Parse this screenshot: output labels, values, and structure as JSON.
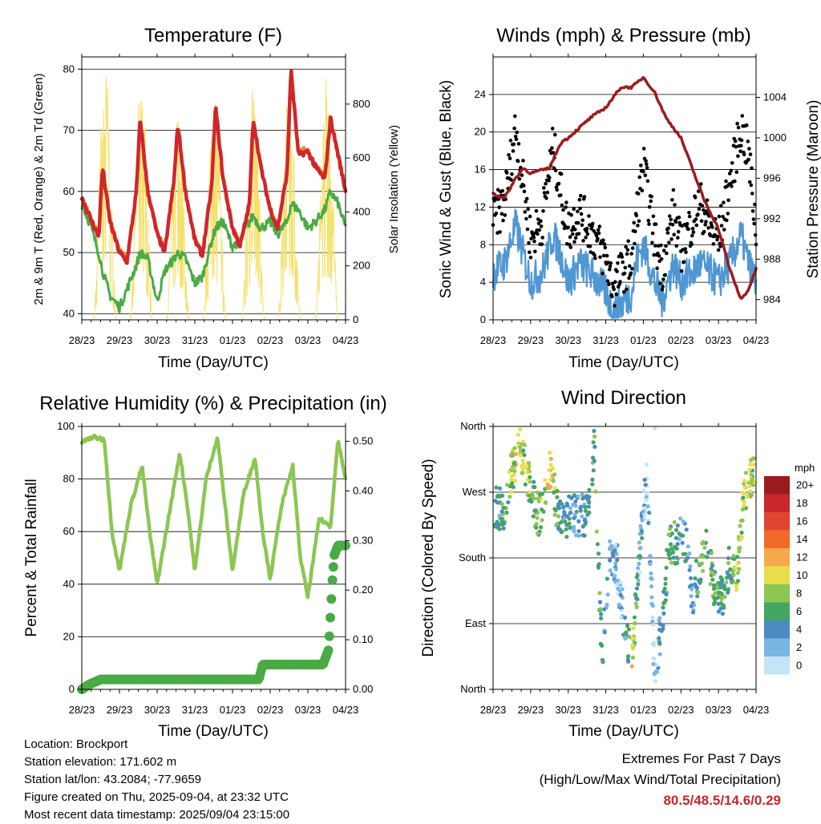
{
  "panels": {
    "temperature": {
      "title": "Temperature (F)",
      "ylabel": "2m & 9m T (Red, Orange) & 2m Td (Green)",
      "y2label": "Solar Insolation (Yellow)",
      "xlabel": "Time (Day/UTC)"
    },
    "winds": {
      "title": "Winds (mph) & Pressure (mb)",
      "ylabel": "Sonic Wind & Gust (Blue, Black)",
      "y2label": "Station Pressure (Maroon)",
      "xlabel": "Time (Day/UTC)"
    },
    "humidity": {
      "title": "Relative Humidity (%) & Precipitation (in)",
      "ylabel": "Percent & Total Rainfall",
      "xlabel": "Time (Day/UTC)"
    },
    "direction": {
      "title": "Wind Direction",
      "ylabel": "Direction (Colored By Speed)",
      "xlabel": "Time (Day/UTC)",
      "colorbar_unit": "mph",
      "colorbar_labels": [
        "20+",
        "18",
        "16",
        "14",
        "12",
        "10",
        "8",
        "6",
        "4",
        "2",
        "0"
      ],
      "colorbar_colors": [
        "#9b1c1f",
        "#c8262b",
        "#e0452f",
        "#f06a2c",
        "#f7a84a",
        "#e8de4c",
        "#8cc653",
        "#45a562",
        "#4a8bc4",
        "#7bb5e2",
        "#c5e4f6"
      ]
    }
  },
  "x_ticks": [
    "28/23",
    "29/23",
    "30/23",
    "31/23",
    "01/23",
    "02/23",
    "03/23",
    "04/23"
  ],
  "info": {
    "location": "Location: Brockport",
    "elevation": "Station elevation: 171.602 m",
    "latlon": "Station lat/lon: 43.2084; -77.9659",
    "created": "Figure created on Thu, 2025-09-04, at 23:32 UTC",
    "recent": "Most recent data timestamp: 2025/09/04 23:15:00"
  },
  "extremes": {
    "line1": "Extremes For Past 7 Days",
    "line2": "(High/Low/Max Wind/Total Precipitation)",
    "values": "80.5/48.5/14.6/0.29"
  },
  "chart_data": [
    {
      "type": "line",
      "title": "Temperature (F)",
      "xlabel": "Time (Day/UTC)",
      "ylabel": "2m & 9m T (Red, Orange) & 2m Td (Green)",
      "y2label": "Solar Insolation (Yellow)",
      "x": [
        0,
        0.2,
        0.45,
        0.55,
        0.75,
        1.0,
        1.2,
        1.45,
        1.55,
        1.75,
        2.0,
        2.2,
        2.45,
        2.55,
        2.75,
        3.0,
        3.2,
        3.45,
        3.55,
        3.75,
        4.0,
        4.2,
        4.45,
        4.55,
        4.75,
        5.0,
        5.2,
        5.45,
        5.55,
        5.75,
        6.0,
        6.2,
        6.45,
        6.6,
        6.8,
        7.0
      ],
      "ylim": [
        39,
        82
      ],
      "y2lim": [
        0,
        975
      ],
      "series": [
        {
          "name": "2m T",
          "color": "#d0262a",
          "axis": "left",
          "values": [
            59,
            56,
            52.5,
            64,
            55,
            50,
            48.5,
            60,
            72,
            60,
            53,
            50,
            62,
            71,
            60,
            52,
            49.5,
            61,
            74,
            62,
            54,
            51,
            58,
            72,
            64,
            57,
            54,
            63,
            80,
            66,
            66.5,
            64,
            62,
            72,
            66,
            60
          ]
        },
        {
          "name": "9m T",
          "color": "#f08a2c",
          "axis": "left",
          "values": [
            59,
            56.5,
            53,
            63.5,
            55.5,
            50.5,
            49,
            59.5,
            71.5,
            60.5,
            53.5,
            50.5,
            61.5,
            70.5,
            60.5,
            52.5,
            50,
            60.5,
            73.5,
            62.5,
            54.5,
            51.5,
            57.5,
            71.5,
            64.5,
            57.5,
            54.5,
            62.5,
            79.5,
            66.5,
            67,
            64.5,
            62.5,
            71.5,
            66.5,
            60.5
          ]
        },
        {
          "name": "2m Td",
          "color": "#4aaa45",
          "axis": "left",
          "values": [
            58,
            55,
            50,
            47,
            43,
            41,
            44,
            48,
            50,
            49,
            42,
            47,
            49,
            50,
            49,
            45,
            46,
            52,
            54,
            55,
            51,
            52,
            55,
            56,
            54,
            55,
            53,
            55,
            58,
            57,
            54,
            55,
            57,
            60,
            58,
            54
          ]
        }
      ],
      "insolation_days": [
        {
          "center": 0.62,
          "peak": 950
        },
        {
          "center": 1.58,
          "peak": 920
        },
        {
          "center": 2.55,
          "peak": 780
        },
        {
          "center": 3.52,
          "peak": 900
        },
        {
          "center": 4.55,
          "peak": 870
        },
        {
          "center": 5.5,
          "peak": 880
        },
        {
          "center": 6.5,
          "peak": 950
        }
      ]
    },
    {
      "type": "scatter",
      "title": "Winds (mph) & Pressure (mb)",
      "xlabel": "Time (Day/UTC)",
      "ylabel": "Sonic Wind & Gust (Blue, Black)",
      "y2label": "Station Pressure (Maroon)",
      "ylim": [
        0,
        28
      ],
      "y2lim": [
        982,
        1008
      ],
      "series": [
        {
          "name": "Sonic Wind",
          "color": "#4f97d3",
          "x": [
            0,
            0.3,
            0.6,
            0.8,
            1.0,
            1.3,
            1.6,
            1.8,
            2.0,
            2.3,
            2.6,
            3.0,
            3.2,
            3.5,
            3.7,
            3.8,
            4.0,
            4.3,
            4.5,
            4.8,
            5.0,
            5.3,
            5.5,
            5.8,
            6.0,
            6.3,
            6.6,
            6.8,
            7.0
          ],
          "values": [
            5,
            6,
            10,
            7,
            4,
            5,
            9,
            7,
            4,
            6,
            5,
            3,
            1,
            2,
            3,
            6,
            8,
            4,
            2,
            6,
            4,
            5,
            6,
            5,
            4,
            6,
            9,
            6,
            4
          ]
        },
        {
          "name": "Gust",
          "color": "#000000",
          "x": [
            0,
            0.3,
            0.6,
            0.8,
            1.0,
            1.3,
            1.6,
            1.8,
            2.0,
            2.3,
            2.6,
            3.0,
            3.2,
            3.5,
            3.7,
            3.8,
            4.0,
            4.3,
            4.5,
            4.8,
            5.0,
            5.3,
            5.5,
            5.8,
            6.0,
            6.3,
            6.6,
            6.8,
            7.0
          ],
          "values": [
            10,
            12,
            20,
            14,
            8,
            10,
            18,
            13,
            9,
            11,
            9,
            6,
            3,
            5,
            6,
            10,
            16,
            8,
            5,
            11,
            7,
            10,
            12,
            9,
            8,
            14,
            20,
            17,
            9
          ]
        },
        {
          "name": "Station Pressure",
          "color": "#9b1c1f",
          "axis": "right",
          "x": [
            0,
            0.3,
            0.6,
            0.8,
            1.0,
            1.5,
            1.8,
            2.0,
            2.3,
            2.6,
            3.0,
            3.4,
            3.7,
            4.0,
            4.3,
            4.6,
            5.0,
            5.3,
            5.6,
            6.0,
            6.3,
            6.6,
            6.8,
            7.0
          ],
          "values": [
            994.5,
            994,
            996,
            997,
            996.5,
            997,
            999.5,
            1000,
            1001,
            1002,
            1003,
            1005,
            1005,
            1006,
            1004.5,
            1002,
            1000,
            997,
            994,
            991,
            987,
            984,
            985,
            987
          ]
        }
      ]
    },
    {
      "type": "line",
      "title": "Relative Humidity (%) & Precipitation (in)",
      "xlabel": "Time (Day/UTC)",
      "ylabel": "Percent & Total Rainfall",
      "ylim": [
        0,
        100
      ],
      "y2lim": [
        0,
        0.53
      ],
      "series": [
        {
          "name": "Relative Humidity",
          "color": "#8cc653",
          "x": [
            0,
            0.3,
            0.6,
            0.8,
            1.0,
            1.3,
            1.6,
            1.8,
            2.0,
            2.3,
            2.6,
            2.8,
            3.0,
            3.3,
            3.6,
            3.8,
            4.0,
            4.3,
            4.6,
            4.8,
            5.0,
            5.3,
            5.6,
            5.8,
            6.0,
            6.3,
            6.6,
            6.8,
            7.0
          ],
          "values": [
            94,
            96,
            95,
            60,
            45,
            70,
            85,
            60,
            40,
            65,
            90,
            70,
            45,
            80,
            96,
            70,
            45,
            75,
            88,
            60,
            42,
            70,
            85,
            50,
            35,
            65,
            62,
            95,
            80
          ]
        },
        {
          "name": "Total Rainfall",
          "color": "#4aaa45",
          "axis": "right",
          "x": [
            0,
            0.2,
            0.5,
            1.0,
            2.0,
            3.0,
            4.0,
            4.7,
            4.8,
            5.5,
            6.0,
            6.4,
            6.55,
            6.6,
            6.65,
            6.7,
            6.8,
            7.0
          ],
          "values": [
            0,
            0.01,
            0.02,
            0.02,
            0.02,
            0.02,
            0.02,
            0.02,
            0.05,
            0.05,
            0.05,
            0.05,
            0.08,
            0.15,
            0.22,
            0.27,
            0.29,
            0.29
          ]
        }
      ]
    },
    {
      "type": "scatter",
      "title": "Wind Direction",
      "xlabel": "Time (Day/UTC)",
      "ylabel": "Direction (Colored By Speed)",
      "y_categories": [
        "North",
        "East",
        "South",
        "West",
        "North"
      ],
      "ylim": [
        0,
        360
      ],
      "x": [
        0.1,
        0.3,
        0.5,
        0.7,
        0.9,
        1.1,
        1.3,
        1.5,
        1.7,
        1.9,
        2.1,
        2.3,
        2.5,
        2.7,
        2.9,
        3.1,
        3.3,
        3.5,
        3.7,
        3.9,
        4.1,
        4.3,
        4.5,
        4.7,
        4.9,
        5.1,
        5.3,
        5.5,
        5.7,
        5.9,
        6.1,
        6.3,
        6.5,
        6.7,
        6.9
      ],
      "direction": [
        250,
        240,
        300,
        330,
        300,
        250,
        235,
        300,
        250,
        235,
        240,
        235,
        240,
        330,
        40,
        180,
        170,
        80,
        40,
        180,
        300,
        20,
        100,
        200,
        200,
        210,
        130,
        160,
        200,
        140,
        120,
        170,
        160,
        270,
        290
      ],
      "speed": [
        4,
        6,
        8,
        10,
        8,
        6,
        7,
        11,
        6,
        4,
        4,
        3,
        4,
        6,
        6,
        2,
        2,
        3,
        10,
        3,
        2,
        1,
        4,
        6,
        5,
        4,
        3,
        6,
        7,
        6,
        5,
        6,
        8,
        9,
        8
      ]
    }
  ]
}
